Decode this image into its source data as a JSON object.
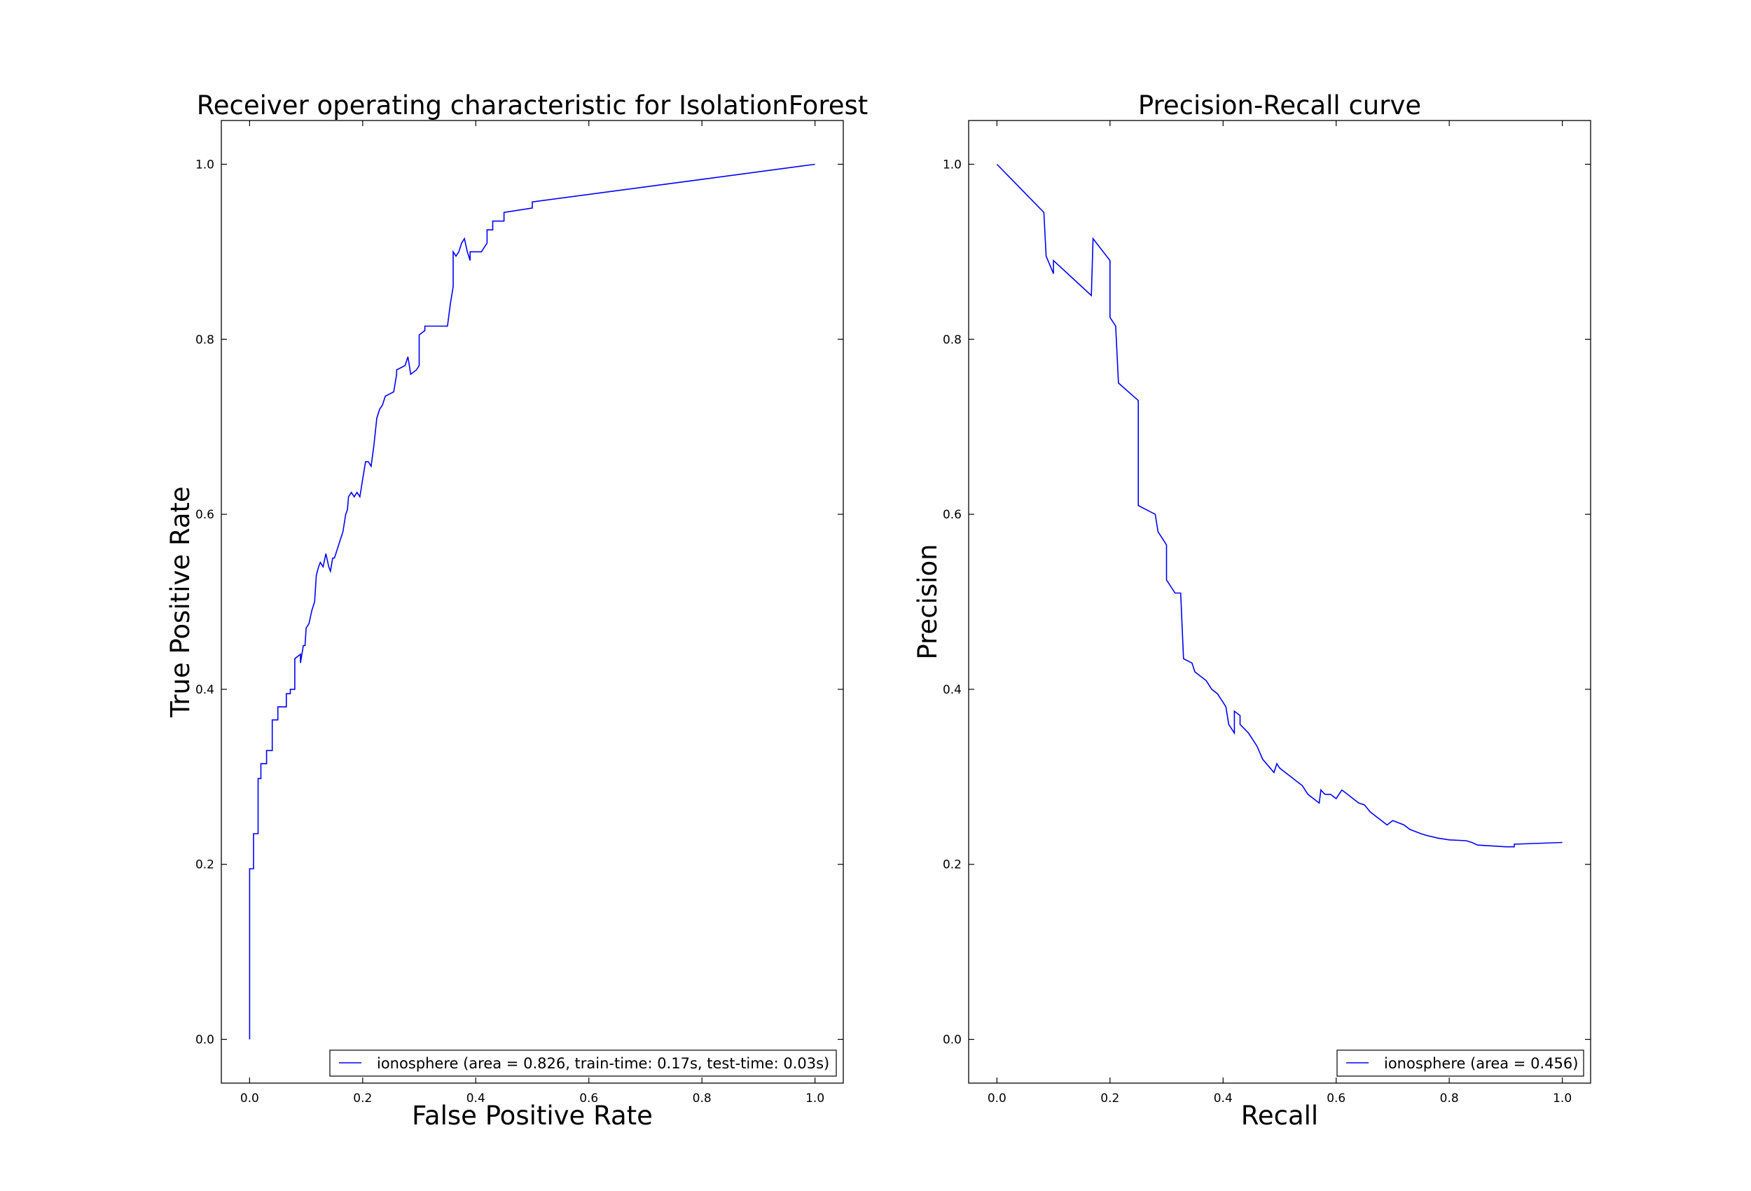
{
  "chart_data": [
    {
      "type": "line",
      "title": "Receiver operating characteristic for IsolationForest",
      "xlabel": "False Positive Rate",
      "ylabel": "True Positive Rate",
      "xlim": [
        -0.05,
        1.05
      ],
      "ylim": [
        -0.05,
        1.05
      ],
      "xticks": [
        "0.0",
        "0.2",
        "0.4",
        "0.6",
        "0.8",
        "1.0"
      ],
      "yticks": [
        "0.0",
        "0.2",
        "0.4",
        "0.6",
        "0.8",
        "1.0"
      ],
      "grid": false,
      "legend_position": "lower-right",
      "line_color": "#0000ff",
      "series": [
        {
          "name": "ionosphere (area = 0.826, train-time: 0.17s, test-time: 0.03s)",
          "x": [
            0.0,
            0.0,
            0.007,
            0.007,
            0.015,
            0.015,
            0.02,
            0.02,
            0.03,
            0.03,
            0.04,
            0.04,
            0.05,
            0.05,
            0.065,
            0.065,
            0.072,
            0.072,
            0.08,
            0.08,
            0.09,
            0.09,
            0.095,
            0.098,
            0.1,
            0.105,
            0.11,
            0.115,
            0.118,
            0.12,
            0.122,
            0.125,
            0.13,
            0.135,
            0.14,
            0.143,
            0.147,
            0.15,
            0.155,
            0.16,
            0.165,
            0.17,
            0.173,
            0.175,
            0.18,
            0.185,
            0.19,
            0.195,
            0.2,
            0.205,
            0.21,
            0.215,
            0.22,
            0.225,
            0.23,
            0.23,
            0.235,
            0.24,
            0.255,
            0.26,
            0.26,
            0.275,
            0.28,
            0.285,
            0.295,
            0.3,
            0.3,
            0.31,
            0.31,
            0.35,
            0.355,
            0.36,
            0.36,
            0.365,
            0.37,
            0.375,
            0.38,
            0.385,
            0.39,
            0.39,
            0.41,
            0.42,
            0.42,
            0.43,
            0.43,
            0.45,
            0.45,
            0.5,
            0.5,
            1.0
          ],
          "y": [
            0.0,
            0.195,
            0.195,
            0.235,
            0.235,
            0.298,
            0.298,
            0.315,
            0.315,
            0.33,
            0.33,
            0.365,
            0.365,
            0.38,
            0.38,
            0.395,
            0.395,
            0.4,
            0.4,
            0.435,
            0.44,
            0.43,
            0.45,
            0.45,
            0.47,
            0.475,
            0.49,
            0.5,
            0.53,
            0.535,
            0.54,
            0.545,
            0.54,
            0.555,
            0.54,
            0.535,
            0.55,
            0.55,
            0.56,
            0.57,
            0.58,
            0.6,
            0.605,
            0.62,
            0.625,
            0.62,
            0.625,
            0.62,
            0.64,
            0.66,
            0.66,
            0.655,
            0.68,
            0.71,
            0.72,
            0.72,
            0.725,
            0.735,
            0.74,
            0.76,
            0.765,
            0.77,
            0.78,
            0.76,
            0.765,
            0.77,
            0.805,
            0.81,
            0.815,
            0.815,
            0.84,
            0.86,
            0.9,
            0.895,
            0.9,
            0.91,
            0.915,
            0.9,
            0.89,
            0.9,
            0.9,
            0.91,
            0.925,
            0.925,
            0.935,
            0.935,
            0.945,
            0.95,
            0.957,
            1.0
          ]
        }
      ]
    },
    {
      "type": "line",
      "title": "Precision-Recall curve",
      "xlabel": "Recall",
      "ylabel": "Precision",
      "xlim": [
        -0.05,
        1.05
      ],
      "ylim": [
        -0.05,
        1.05
      ],
      "xticks": [
        "0.0",
        "0.2",
        "0.4",
        "0.6",
        "0.8",
        "1.0"
      ],
      "yticks": [
        "0.0",
        "0.2",
        "0.4",
        "0.6",
        "0.8",
        "1.0"
      ],
      "grid": false,
      "legend_position": "lower-right",
      "line_color": "#0000ff",
      "series": [
        {
          "name": "ionosphere (area = 0.456)",
          "x": [
            0.0,
            0.083,
            0.087,
            0.1,
            0.1,
            0.167,
            0.17,
            0.2,
            0.2,
            0.21,
            0.215,
            0.215,
            0.25,
            0.25,
            0.28,
            0.285,
            0.29,
            0.295,
            0.3,
            0.3,
            0.315,
            0.325,
            0.33,
            0.33,
            0.345,
            0.35,
            0.36,
            0.37,
            0.38,
            0.39,
            0.4,
            0.405,
            0.41,
            0.42,
            0.42,
            0.43,
            0.43,
            0.445,
            0.46,
            0.47,
            0.49,
            0.495,
            0.5,
            0.51,
            0.52,
            0.53,
            0.54,
            0.55,
            0.56,
            0.57,
            0.573,
            0.58,
            0.59,
            0.6,
            0.605,
            0.61,
            0.62,
            0.63,
            0.64,
            0.65,
            0.66,
            0.67,
            0.68,
            0.69,
            0.7,
            0.72,
            0.73,
            0.75,
            0.76,
            0.78,
            0.8,
            0.83,
            0.84,
            0.85,
            0.85,
            0.9,
            0.915,
            0.915,
            1.0
          ],
          "y": [
            1.0,
            0.945,
            0.895,
            0.875,
            0.89,
            0.85,
            0.915,
            0.89,
            0.825,
            0.815,
            0.75,
            0.75,
            0.73,
            0.61,
            0.6,
            0.58,
            0.575,
            0.57,
            0.565,
            0.525,
            0.51,
            0.51,
            0.435,
            0.435,
            0.43,
            0.42,
            0.415,
            0.41,
            0.4,
            0.395,
            0.385,
            0.38,
            0.36,
            0.35,
            0.375,
            0.37,
            0.36,
            0.35,
            0.335,
            0.32,
            0.305,
            0.315,
            0.31,
            0.305,
            0.3,
            0.295,
            0.29,
            0.28,
            0.275,
            0.27,
            0.285,
            0.28,
            0.28,
            0.275,
            0.28,
            0.285,
            0.28,
            0.275,
            0.27,
            0.268,
            0.26,
            0.255,
            0.25,
            0.245,
            0.25,
            0.245,
            0.24,
            0.235,
            0.233,
            0.23,
            0.228,
            0.227,
            0.225,
            0.222,
            0.222,
            0.22,
            0.22,
            0.223,
            0.225
          ]
        }
      ]
    }
  ]
}
